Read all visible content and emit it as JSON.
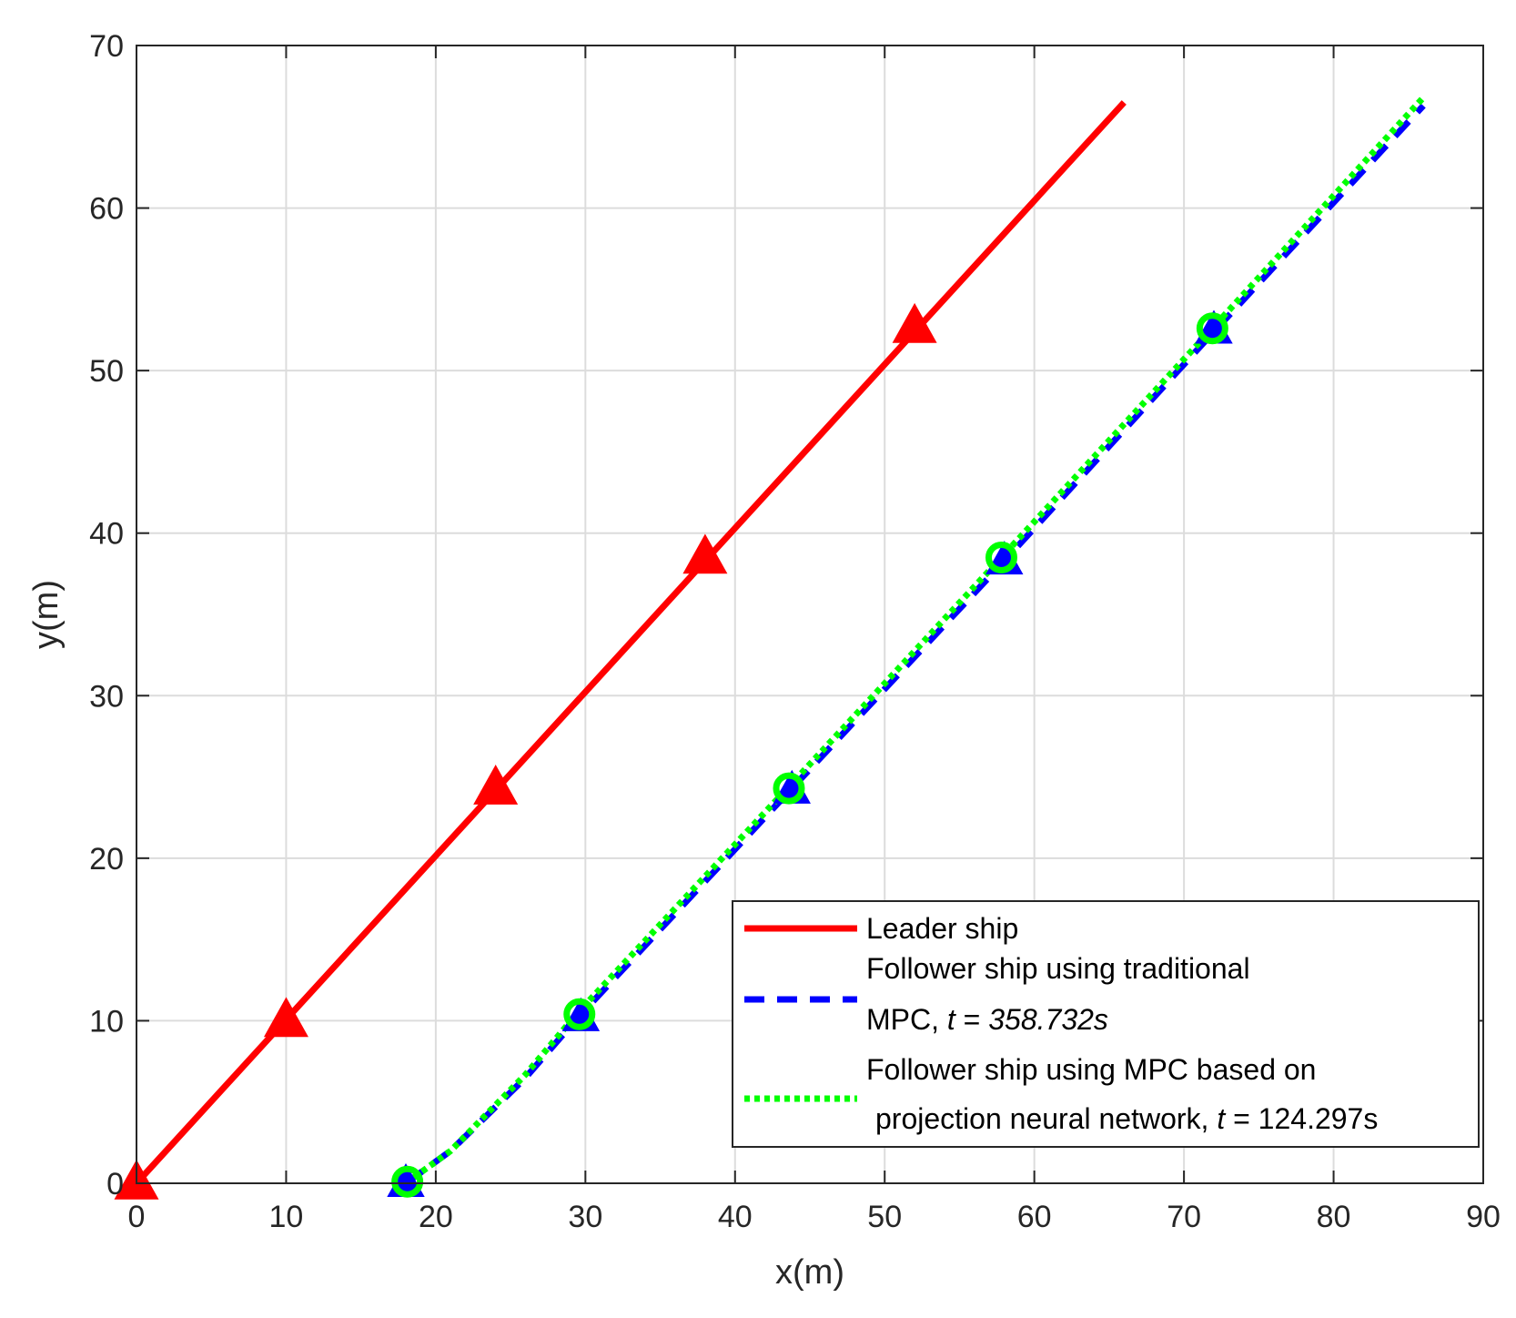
{
  "chart_data": {
    "type": "line",
    "title": "",
    "xlabel": "x(m)",
    "ylabel": "y(m)",
    "xlim": [
      0,
      90
    ],
    "ylim": [
      0,
      70
    ],
    "xticks": [
      0,
      10,
      20,
      30,
      40,
      50,
      60,
      70,
      80,
      90
    ],
    "yticks": [
      0,
      10,
      20,
      30,
      40,
      50,
      60,
      70
    ],
    "grid": true,
    "legend_position": "bottom-right",
    "series": [
      {
        "name": "Leader ship",
        "color": "#ff0000",
        "style": "solid",
        "marker": "triangle",
        "x": [
          0,
          66
        ],
        "y": [
          0,
          66.5
        ],
        "marker_points": [
          [
            0,
            0
          ],
          [
            10,
            10
          ],
          [
            24,
            24.3
          ],
          [
            38,
            38.5
          ],
          [
            52,
            52.7
          ]
        ]
      },
      {
        "name": "Follower ship using traditional MPC, t = 358.732s",
        "legend_lines": [
          "Follower ship using traditional",
          "MPC, ",
          "t",
          " = ",
          "358.732s"
        ],
        "color": "#0000ff",
        "style": "dashed",
        "marker": "triangle",
        "x": [
          18,
          21,
          26,
          29.5,
          43.8,
          58,
          72,
          86
        ],
        "y": [
          0,
          2,
          6.5,
          10.2,
          24.3,
          38.3,
          52.4,
          66.3
        ],
        "marker_points": [
          [
            18,
            0
          ],
          [
            29.7,
            10.2
          ],
          [
            43.8,
            24.2
          ],
          [
            58,
            38.3
          ],
          [
            72,
            52.5
          ]
        ]
      },
      {
        "name": "Follower ship using MPC based on projection neural network, t = 124.297s",
        "legend_lines": [
          "Follower ship using MPC based on",
          "projection neural network, ",
          "t",
          " = 124.297s"
        ],
        "color": "#00ff00",
        "style": "dotted",
        "marker": "circle",
        "x": [
          18,
          21,
          26,
          29.5,
          43.6,
          57.8,
          71.9,
          86
        ],
        "y": [
          0,
          2,
          6.7,
          10.5,
          24.4,
          38.5,
          52.6,
          66.8
        ],
        "marker_points": [
          [
            18.1,
            0.1
          ],
          [
            29.6,
            10.4
          ],
          [
            43.6,
            24.3
          ],
          [
            57.8,
            38.5
          ],
          [
            71.9,
            52.6
          ]
        ]
      }
    ]
  }
}
